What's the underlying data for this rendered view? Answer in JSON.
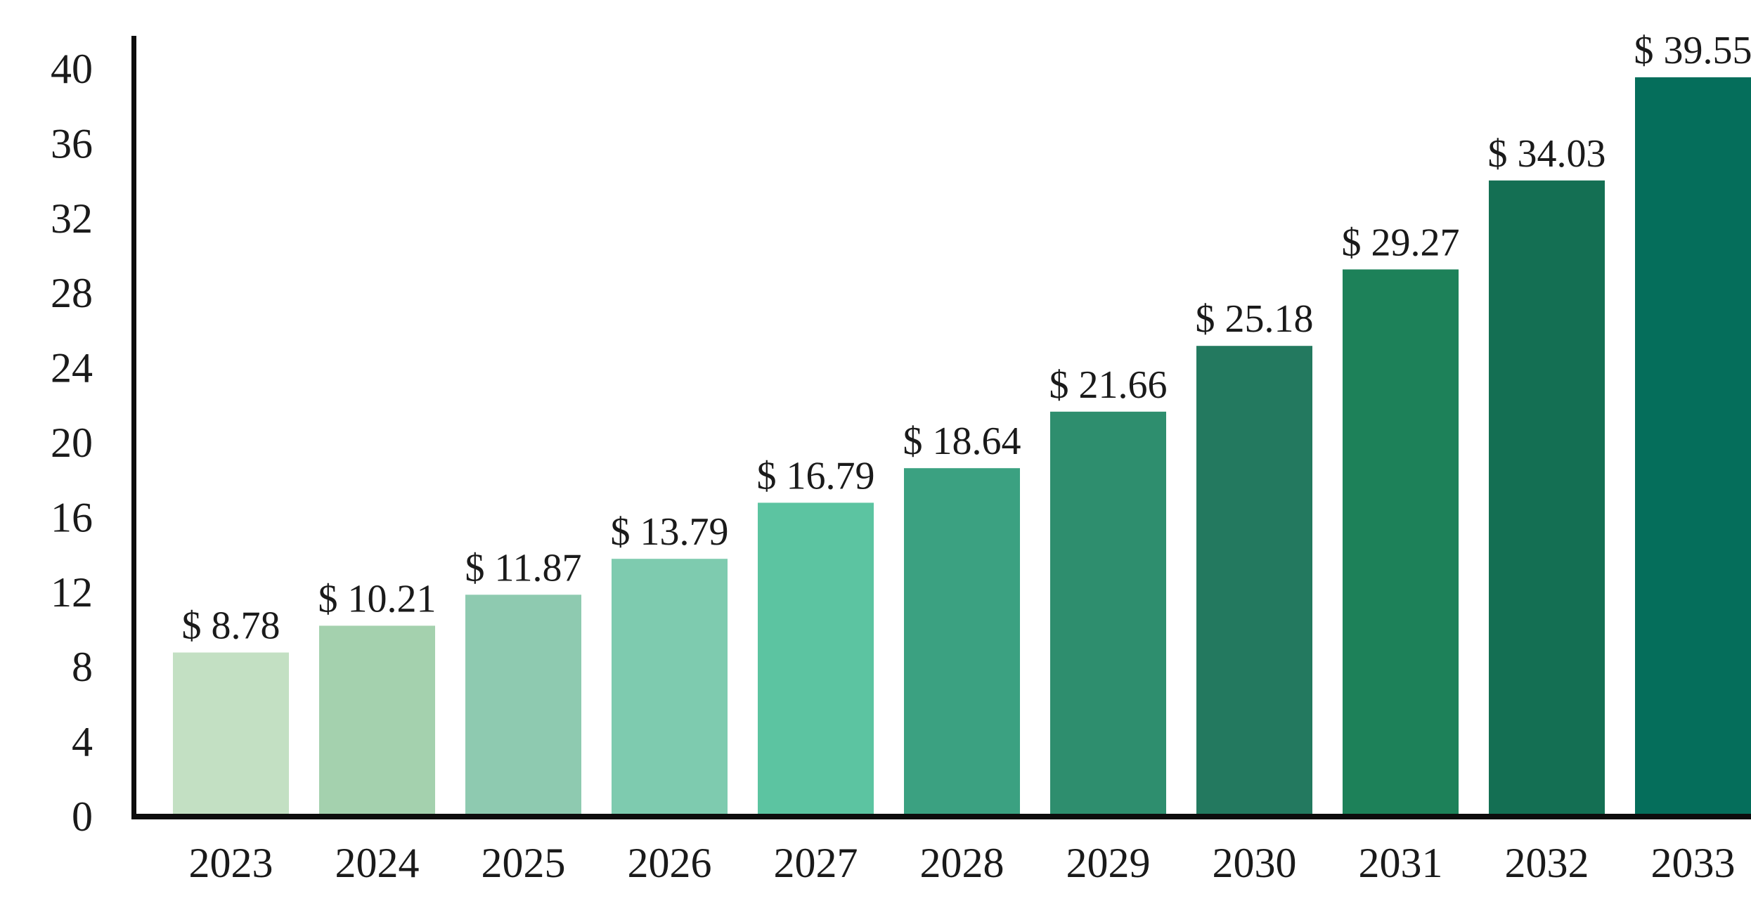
{
  "chart_data": {
    "type": "bar",
    "title": "",
    "xlabel": "",
    "ylabel": "",
    "grid": false,
    "legend": "none",
    "categories": [
      "2023",
      "2024",
      "2025",
      "2026",
      "2027",
      "2028",
      "2029",
      "2030",
      "2031",
      "2032",
      "2033"
    ],
    "values": [
      8.78,
      10.21,
      11.87,
      13.79,
      16.79,
      18.64,
      21.66,
      25.18,
      29.27,
      34.03,
      39.55
    ],
    "value_labels": [
      "$ 8.78",
      "$ 10.21",
      "$ 11.87",
      "$ 13.79",
      "$ 16.79",
      "$ 18.64",
      "$ 21.66",
      "$ 25.18",
      "$ 29.27",
      "$ 34.03",
      "$ 39.55"
    ],
    "bar_colors": [
      "#c3e0c3",
      "#a4d1ae",
      "#8ecab0",
      "#7ecbaf",
      "#5cc4a1",
      "#3ba181",
      "#2e8e6e",
      "#23795f",
      "#1d8159",
      "#146f53",
      "#056e5b"
    ],
    "y_axis": {
      "min": 0,
      "max": 40,
      "step": 4,
      "tick_labels": [
        "0",
        "4",
        "8",
        "12",
        "16",
        "20",
        "24",
        "28",
        "32",
        "36",
        "40"
      ]
    },
    "colors": {
      "axis": "#0d0d0d",
      "text": "#1a1a1a",
      "background": "#ffffff"
    }
  }
}
